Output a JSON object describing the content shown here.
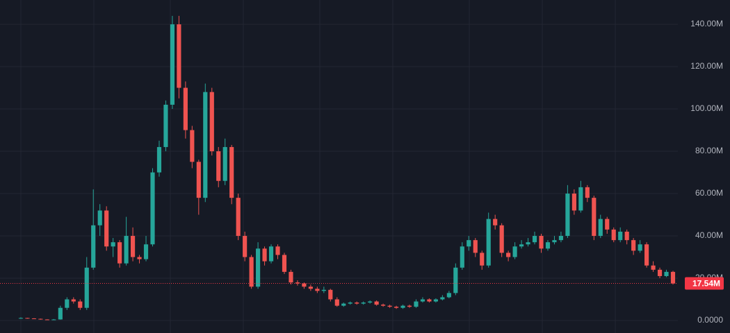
{
  "chart_data": {
    "type": "candlestick",
    "up_color": "#26a69a",
    "down_color": "#ef5350",
    "ylim": [
      -5.9,
      151.5
    ],
    "yticks": [
      {
        "value": 0,
        "label": "0.0000"
      },
      {
        "value": 20,
        "label": "20.00M"
      },
      {
        "value": 40,
        "label": "40.00M"
      },
      {
        "value": 60,
        "label": "60.00M"
      },
      {
        "value": 80,
        "label": "80.00M"
      },
      {
        "value": 100,
        "label": "100.00M"
      },
      {
        "value": 120,
        "label": "120.00M"
      },
      {
        "value": 140,
        "label": "140.00M"
      }
    ],
    "grid": true,
    "last_price": {
      "value": 17.54,
      "label": "17.54M",
      "color": "#f23645"
    },
    "ohlc": [
      [
        1.0,
        1.5,
        0.8,
        1.2
      ],
      [
        1.2,
        1.3,
        0.9,
        1.0
      ],
      [
        1.0,
        1.1,
        0.7,
        0.8
      ],
      [
        0.8,
        0.9,
        0.4,
        0.5
      ],
      [
        0.5,
        0.6,
        0.3,
        0.4
      ],
      [
        0.4,
        0.7,
        0.3,
        0.5
      ],
      [
        0.5,
        7,
        0.4,
        6
      ],
      [
        6,
        11,
        5,
        10
      ],
      [
        10,
        11,
        8,
        9
      ],
      [
        9,
        10,
        5,
        6
      ],
      [
        6,
        30,
        5,
        25
      ],
      [
        25,
        62,
        24,
        45
      ],
      [
        45,
        55,
        40,
        52
      ],
      [
        52,
        54,
        33,
        35
      ],
      [
        35,
        39,
        30,
        37
      ],
      [
        37,
        38,
        25,
        27
      ],
      [
        27,
        49,
        26,
        40
      ],
      [
        40,
        44,
        28,
        30
      ],
      [
        30,
        31,
        27,
        29
      ],
      [
        29,
        40,
        28,
        36
      ],
      [
        36,
        72,
        35,
        70
      ],
      [
        70,
        85,
        68,
        82
      ],
      [
        82,
        104,
        80,
        102
      ],
      [
        102,
        144,
        100,
        140
      ],
      [
        140,
        144,
        105,
        110
      ],
      [
        110,
        113,
        86,
        90
      ],
      [
        90,
        92,
        72,
        75
      ],
      [
        75,
        76,
        50,
        58
      ],
      [
        58,
        112,
        56,
        108
      ],
      [
        108,
        110,
        78,
        80
      ],
      [
        80,
        82,
        63,
        66
      ],
      [
        66,
        86,
        64,
        82
      ],
      [
        82,
        83,
        55,
        58
      ],
      [
        58,
        60,
        38,
        40
      ],
      [
        40,
        42,
        28,
        30
      ],
      [
        30,
        31,
        15,
        16
      ],
      [
        16,
        37,
        15,
        34
      ],
      [
        34,
        35,
        26,
        28
      ],
      [
        28,
        36,
        27,
        35
      ],
      [
        35,
        36,
        29,
        31
      ],
      [
        31,
        32,
        22,
        23
      ],
      [
        23,
        24,
        17,
        18
      ],
      [
        18,
        19,
        16.5,
        17.5
      ],
      [
        17.5,
        18,
        15,
        16
      ],
      [
        16,
        17,
        14,
        15
      ],
      [
        15,
        16,
        13,
        14
      ],
      [
        14,
        16,
        13,
        14.5
      ],
      [
        14.5,
        15,
        9,
        10
      ],
      [
        10,
        11,
        6.5,
        7
      ],
      [
        7,
        8.5,
        6.5,
        8
      ],
      [
        8,
        9,
        7.5,
        8.5
      ],
      [
        8.5,
        9,
        7.5,
        8
      ],
      [
        8,
        9,
        7.5,
        8.5
      ],
      [
        8.5,
        9.5,
        8,
        9
      ],
      [
        9,
        9.5,
        7,
        7.5
      ],
      [
        7.5,
        8,
        6.5,
        7
      ],
      [
        7,
        7.5,
        6,
        6.5
      ],
      [
        6.5,
        7,
        5.5,
        6
      ],
      [
        6,
        7.5,
        5.5,
        7
      ],
      [
        7,
        7.5,
        6,
        6.5
      ],
      [
        6.5,
        10,
        6,
        9
      ],
      [
        9,
        11,
        8.5,
        10
      ],
      [
        10,
        10.5,
        8.5,
        9
      ],
      [
        9,
        10.5,
        8.5,
        10
      ],
      [
        10,
        12,
        9.5,
        11
      ],
      [
        11,
        14,
        10.5,
        13
      ],
      [
        13,
        27,
        12,
        25
      ],
      [
        25,
        37,
        24,
        35
      ],
      [
        35,
        40,
        33,
        38
      ],
      [
        38,
        39,
        30,
        32
      ],
      [
        32,
        33,
        24,
        26
      ],
      [
        26,
        51,
        25,
        48
      ],
      [
        48,
        50,
        43,
        45
      ],
      [
        45,
        46,
        30,
        32
      ],
      [
        32,
        33,
        28,
        30
      ],
      [
        30,
        37,
        29,
        35
      ],
      [
        35,
        38,
        34,
        36
      ],
      [
        36,
        39,
        35,
        37
      ],
      [
        37,
        42,
        36,
        40
      ],
      [
        40,
        41,
        32,
        34
      ],
      [
        34,
        38,
        33,
        37
      ],
      [
        37,
        40,
        36,
        38
      ],
      [
        38,
        42,
        37,
        40
      ],
      [
        40,
        64,
        39,
        60
      ],
      [
        60,
        62,
        50,
        52
      ],
      [
        52,
        66,
        51,
        63
      ],
      [
        63,
        64,
        56,
        58
      ],
      [
        58,
        59,
        38,
        40
      ],
      [
        40,
        50,
        39,
        48
      ],
      [
        48,
        49,
        41,
        43
      ],
      [
        43,
        44,
        37,
        38
      ],
      [
        38,
        44,
        37,
        42
      ],
      [
        42,
        43,
        36,
        38
      ],
      [
        38,
        39,
        31,
        33
      ],
      [
        33,
        38,
        32,
        36
      ],
      [
        36,
        37,
        25,
        26
      ],
      [
        26,
        28,
        23,
        24
      ],
      [
        24,
        25,
        20,
        21
      ],
      [
        21,
        24,
        20.5,
        23
      ],
      [
        23,
        23.5,
        17,
        17.54
      ]
    ]
  }
}
